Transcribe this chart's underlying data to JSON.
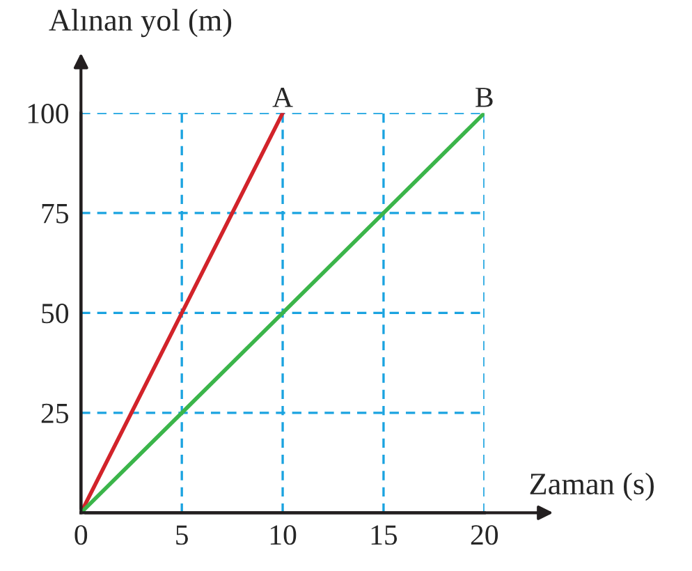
{
  "chart_data": {
    "type": "line",
    "xlabel": "Zaman (s)",
    "ylabel": "Alınan yol (m)",
    "series": [
      {
        "name": "A",
        "color": "#d2232a",
        "x": [
          0,
          10
        ],
        "values": [
          0,
          100
        ]
      },
      {
        "name": "B",
        "color": "#3bb54a",
        "x": [
          0,
          20
        ],
        "values": [
          0,
          100
        ]
      }
    ],
    "xlim": [
      0,
      20
    ],
    "ylim": [
      0,
      100
    ],
    "xticks": [
      0,
      5,
      10,
      15,
      20
    ],
    "yticks": [
      25,
      50,
      75,
      100
    ],
    "grid": true,
    "line_style": "solid",
    "marker": "none",
    "legend": false
  }
}
